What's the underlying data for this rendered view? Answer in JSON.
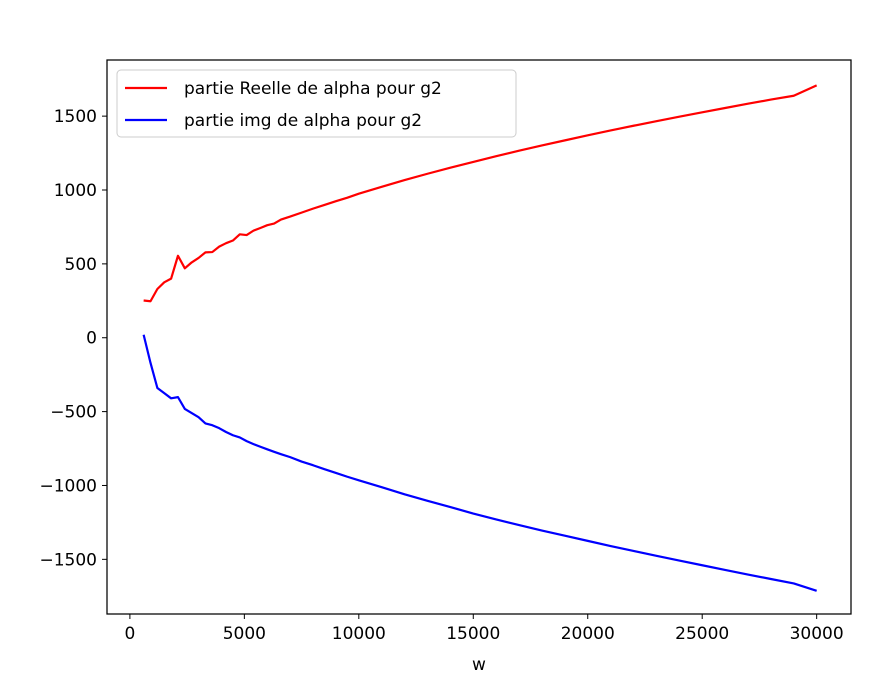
{
  "chart_data": {
    "type": "line",
    "title": "",
    "xlabel": "w",
    "ylabel": "",
    "xlim": [
      -1000,
      31500
    ],
    "ylim": [
      -1870,
      1880
    ],
    "x_ticks": [
      0,
      5000,
      10000,
      15000,
      20000,
      25000,
      30000
    ],
    "x_tick_labels": [
      "0",
      "5000",
      "10000",
      "15000",
      "20000",
      "25000",
      "30000"
    ],
    "y_ticks": [
      -1500,
      -1000,
      -500,
      0,
      500,
      1000,
      1500
    ],
    "y_tick_labels": [
      "−1500",
      "−1000",
      "−500",
      "0",
      "500",
      "1000",
      "1500"
    ],
    "grid": false,
    "legend_position": "upper-left",
    "series": [
      {
        "name": "partie Reelle de alpha pour g2",
        "color": "#ff0000",
        "x": [
          600,
          900,
          1200,
          1500,
          1800,
          2100,
          2400,
          2700,
          3000,
          3300,
          3600,
          3900,
          4200,
          4500,
          4800,
          5100,
          5400,
          5700,
          6000,
          6300,
          6600,
          7000,
          7500,
          8000,
          8500,
          9000,
          9500,
          10000,
          11000,
          12000,
          13000,
          14000,
          15000,
          16000,
          17000,
          18000,
          19000,
          20000,
          21000,
          22000,
          23000,
          24000,
          25000,
          26000,
          27000,
          28000,
          29000,
          30000
        ],
        "values": [
          252,
          247,
          330,
          375,
          400,
          555,
          470,
          510,
          540,
          578,
          580,
          617,
          640,
          658,
          700,
          695,
          725,
          743,
          762,
          773,
          800,
          820,
          847,
          874,
          899,
          924,
          948,
          975,
          1022,
          1067,
          1110,
          1151,
          1190,
          1229,
          1266,
          1302,
          1336,
          1370,
          1403,
          1435,
          1466,
          1496,
          1526,
          1555,
          1584,
          1612,
          1638,
          1708
        ]
      },
      {
        "name": "partie img de alpha pour g2",
        "color": "#0000ff",
        "x": [
          600,
          900,
          1200,
          1500,
          1800,
          2100,
          2400,
          2700,
          3000,
          3300,
          3600,
          3900,
          4200,
          4500,
          4800,
          5100,
          5400,
          5700,
          6000,
          6300,
          6600,
          7000,
          7500,
          8000,
          8500,
          9000,
          9500,
          10000,
          11000,
          12000,
          13000,
          14000,
          15000,
          16000,
          17000,
          18000,
          19000,
          20000,
          21000,
          22000,
          23000,
          24000,
          25000,
          26000,
          27000,
          28000,
          29000,
          30000
        ],
        "values": [
          20,
          -170,
          -340,
          -375,
          -410,
          -402,
          -482,
          -510,
          -538,
          -580,
          -592,
          -612,
          -638,
          -660,
          -675,
          -700,
          -720,
          -738,
          -755,
          -772,
          -788,
          -808,
          -838,
          -863,
          -890,
          -915,
          -941,
          -965,
          -1012,
          -1060,
          -1104,
          -1146,
          -1190,
          -1230,
          -1268,
          -1305,
          -1340,
          -1375,
          -1410,
          -1443,
          -1476,
          -1508,
          -1540,
          -1572,
          -1603,
          -1633,
          -1663,
          -1713
        ]
      }
    ]
  }
}
